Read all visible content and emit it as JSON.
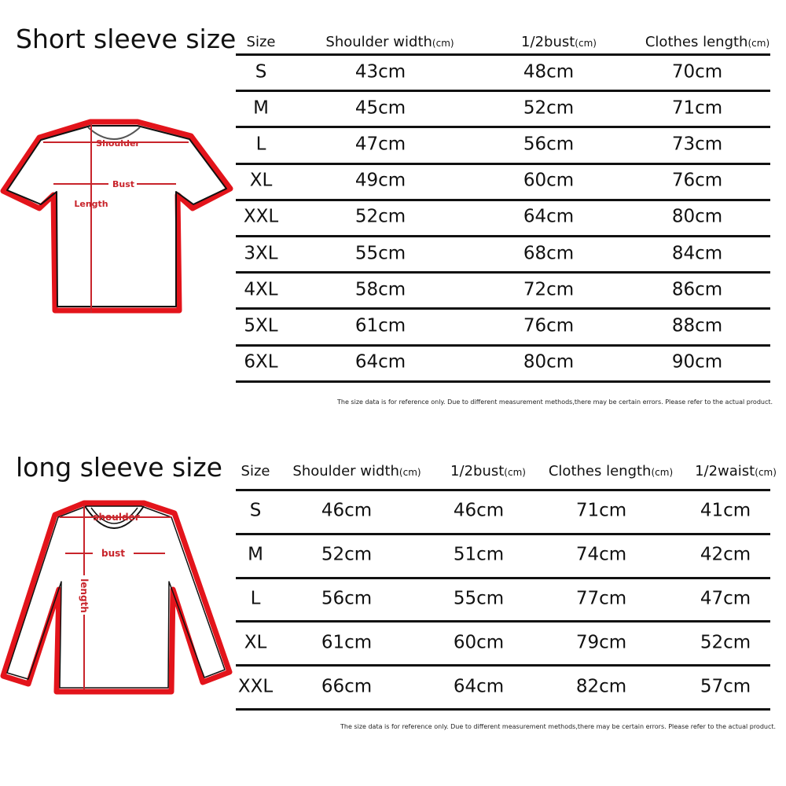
{
  "short_sleeve": {
    "title": "Short sleeve size",
    "diagram_labels": {
      "shoulder": "Shoulder",
      "bust": "Bust",
      "length": "Length"
    },
    "headers": [
      {
        "label": "Size",
        "unit": ""
      },
      {
        "label": "Shoulder width",
        "unit": "(cm)"
      },
      {
        "label": "1/2bust",
        "unit": "(cm)"
      },
      {
        "label": "Clothes length",
        "unit": "(cm)"
      }
    ],
    "rows": [
      [
        "S",
        "43cm",
        "48cm",
        "70cm"
      ],
      [
        "M",
        "45cm",
        "52cm",
        "71cm"
      ],
      [
        "L",
        "47cm",
        "56cm",
        "73cm"
      ],
      [
        "XL",
        "49cm",
        "60cm",
        "76cm"
      ],
      [
        "XXL",
        "52cm",
        "64cm",
        "80cm"
      ],
      [
        "3XL",
        "55cm",
        "68cm",
        "84cm"
      ],
      [
        "4XL",
        "58cm",
        "72cm",
        "86cm"
      ],
      [
        "5XL",
        "61cm",
        "76cm",
        "88cm"
      ],
      [
        "6XL",
        "64cm",
        "80cm",
        "90cm"
      ]
    ],
    "note": "The size data is for reference only. Due to different measurement methods,there may be certain errors. Please refer to the actual product."
  },
  "long_sleeve": {
    "title": "long sleeve size",
    "diagram_labels": {
      "shoulder": "shoulder",
      "bust": "bust",
      "length": "length"
    },
    "headers": [
      {
        "label": "Size",
        "unit": ""
      },
      {
        "label": "Shoulder width",
        "unit": "(cm)"
      },
      {
        "label": "1/2bust",
        "unit": "(cm)"
      },
      {
        "label": "Clothes length",
        "unit": "(cm)"
      },
      {
        "label": "1/2waist",
        "unit": "(cm)"
      }
    ],
    "rows": [
      [
        "S",
        "46cm",
        "46cm",
        "71cm",
        "41cm"
      ],
      [
        "M",
        "52cm",
        "51cm",
        "74cm",
        "42cm"
      ],
      [
        "L",
        "56cm",
        "55cm",
        "77cm",
        "47cm"
      ],
      [
        "XL",
        "61cm",
        "60cm",
        "79cm",
        "52cm"
      ],
      [
        "XXL",
        "66cm",
        "64cm",
        "82cm",
        "57cm"
      ]
    ],
    "note": "The size data is for reference only. Due to different measurement methods,there may be certain errors. Please refer to the actual product."
  },
  "colors": {
    "outline_red": "#e3141b",
    "measure_red": "#c8242b",
    "text": "#111111"
  }
}
